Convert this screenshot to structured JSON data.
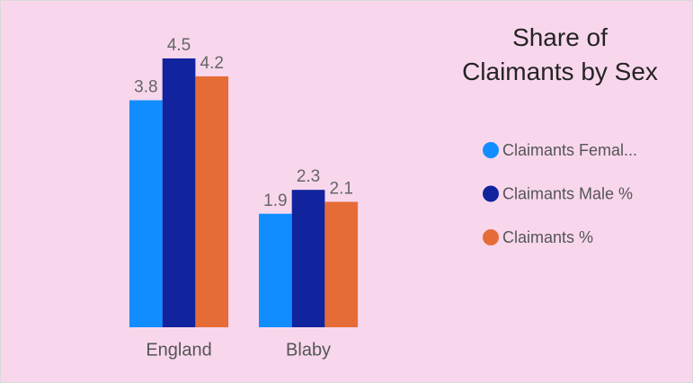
{
  "chart_data": {
    "type": "bar",
    "title": "Share of Claimants by Sex",
    "categories": [
      "England",
      "Blaby"
    ],
    "series": [
      {
        "name": "Claimants Femal...",
        "color": "#118dff",
        "values": [
          3.8,
          1.9
        ]
      },
      {
        "name": "Claimants Male %",
        "color": "#12239e",
        "values": [
          4.5,
          2.3
        ]
      },
      {
        "name": "Claimants %",
        "color": "#e66c37",
        "values": [
          4.2,
          2.1
        ]
      }
    ],
    "legend": "right"
  }
}
